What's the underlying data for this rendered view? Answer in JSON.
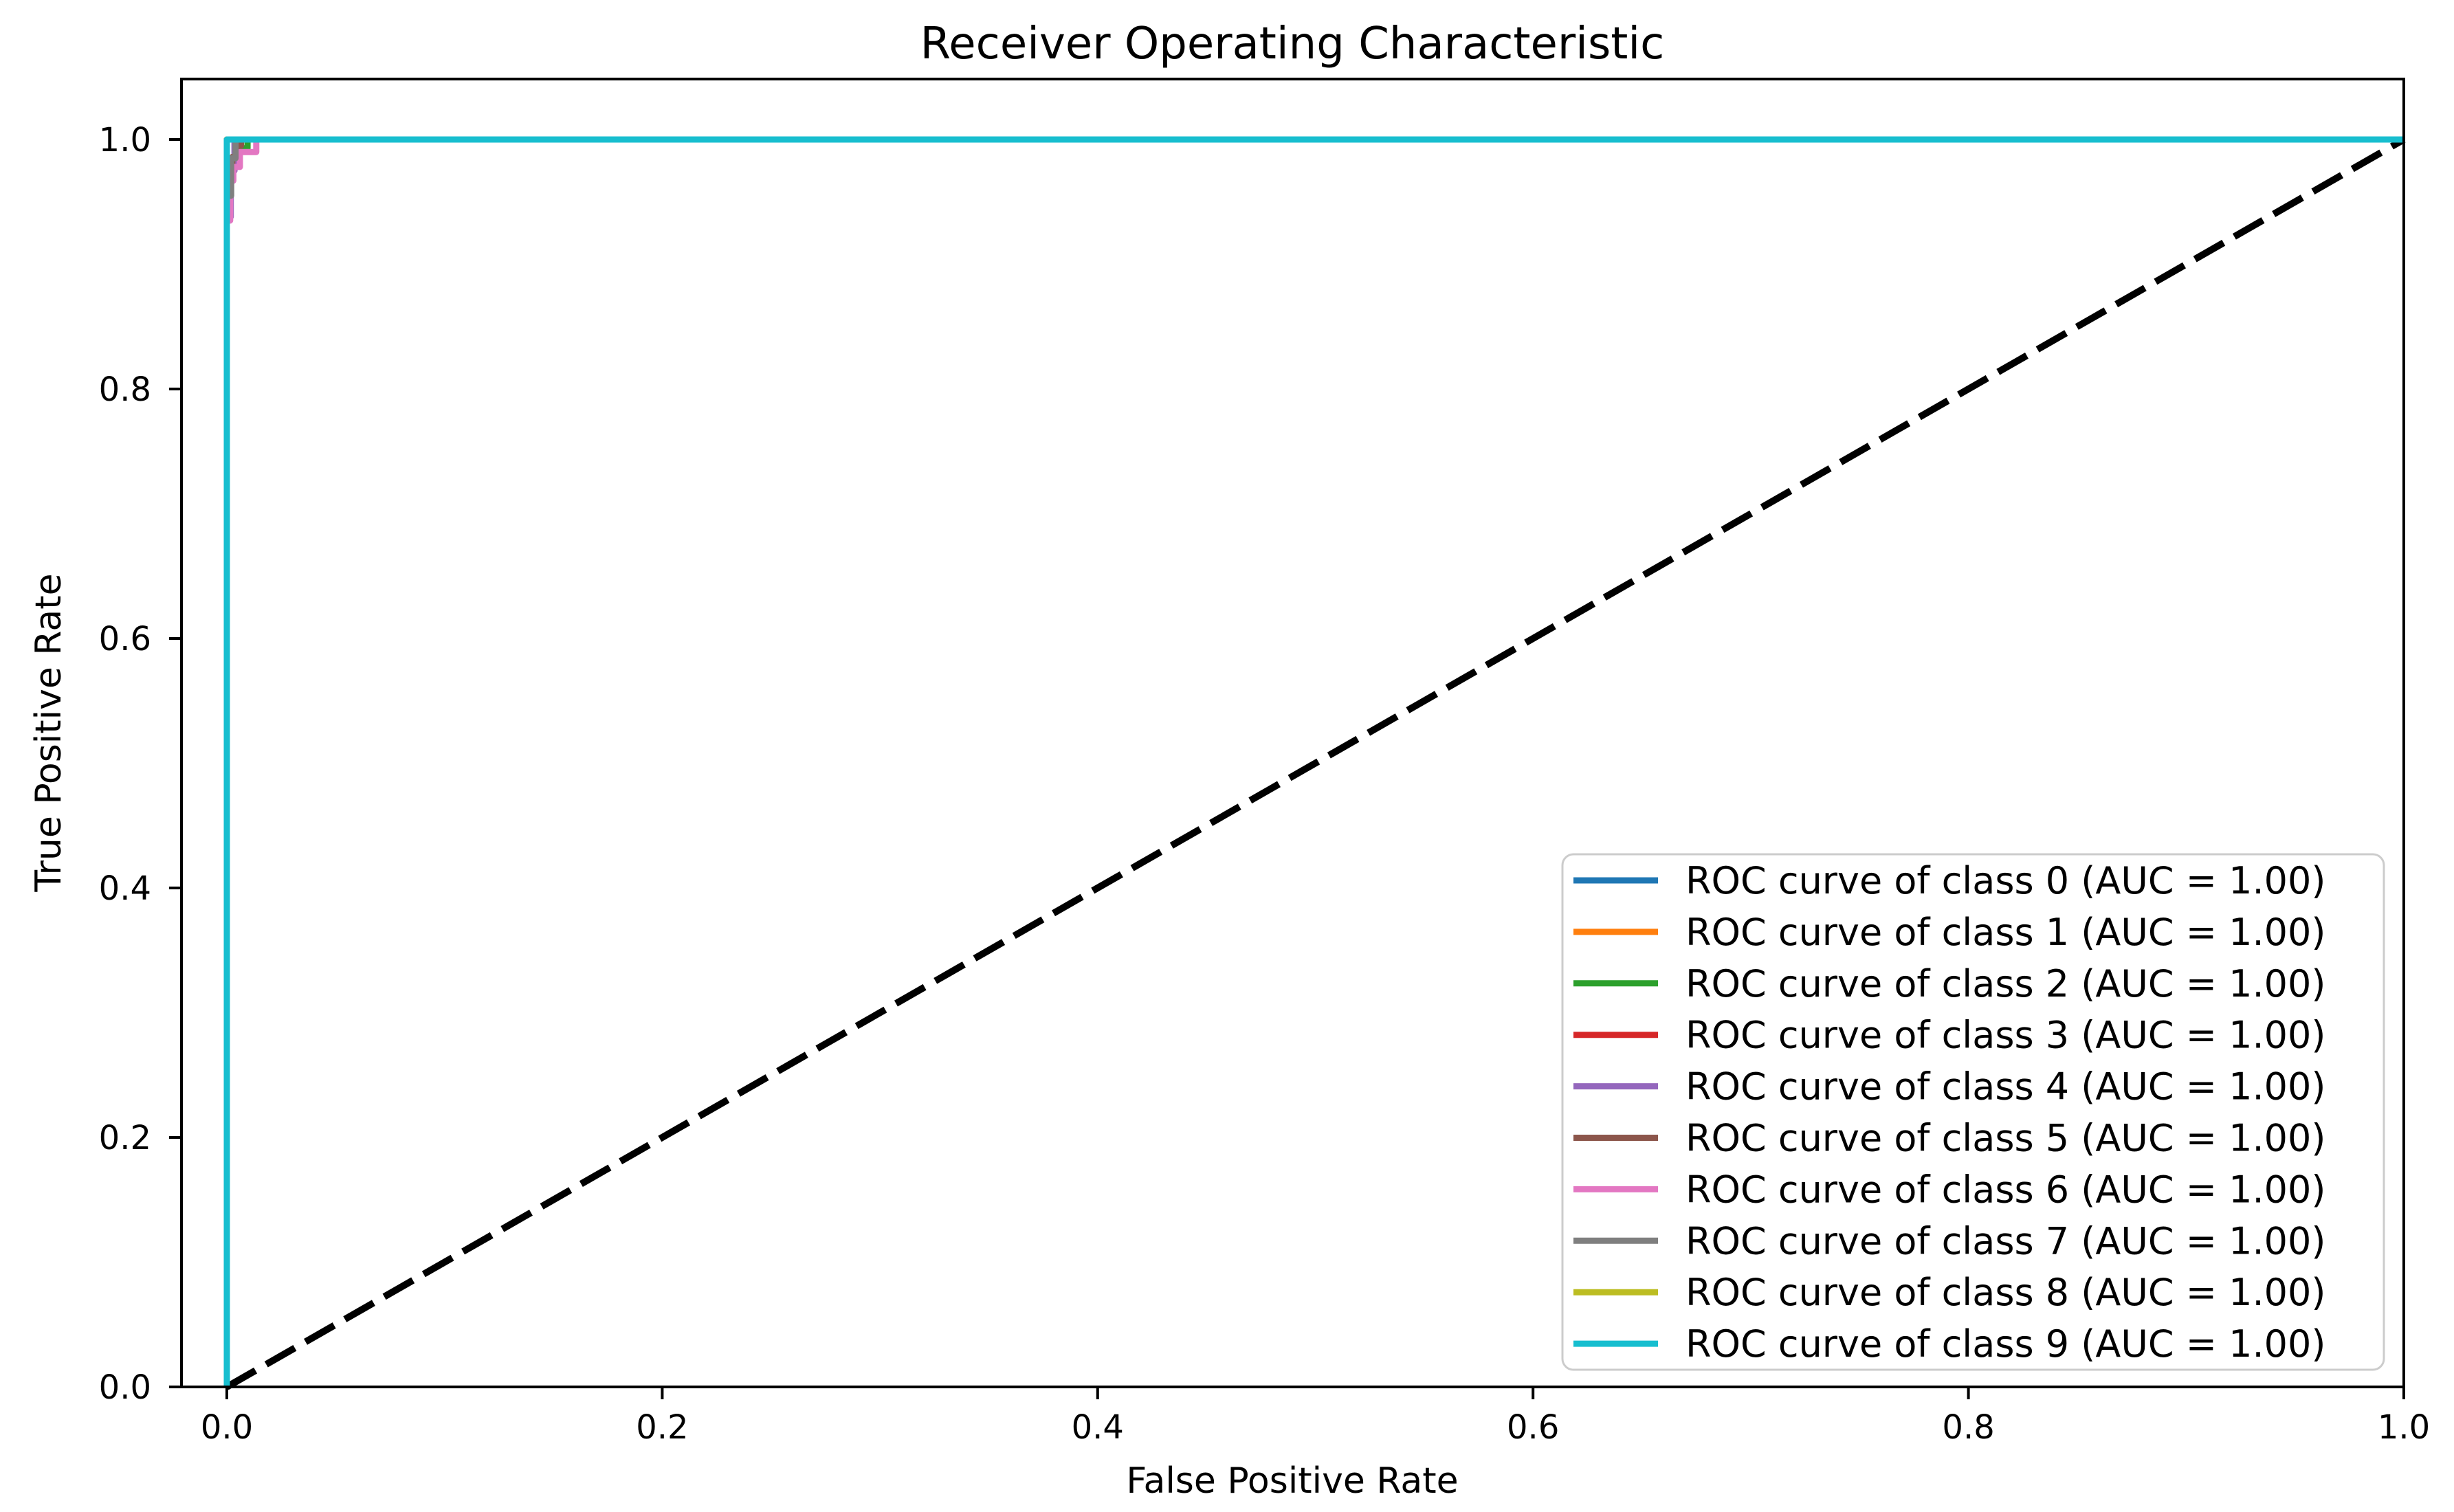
{
  "chart_data": {
    "type": "line",
    "title": "Receiver Operating Characteristic",
    "xlabel": "False Positive Rate",
    "ylabel": "True Positive Rate",
    "xlim": [
      -0.021,
      1.0
    ],
    "ylim": [
      0.0,
      1.05
    ],
    "grid": false,
    "legend_position": "lower right",
    "x_ticks": [
      0.0,
      0.2,
      0.4,
      0.6,
      0.8,
      1.0
    ],
    "x_tick_labels": [
      "0.0",
      "0.2",
      "0.4",
      "0.6",
      "0.8",
      "1.0"
    ],
    "y_ticks": [
      0.0,
      0.2,
      0.4,
      0.6,
      0.8,
      1.0
    ],
    "y_tick_labels": [
      "0.0",
      "0.2",
      "0.4",
      "0.6",
      "0.8",
      "1.0"
    ],
    "reference_line": {
      "name": "chance-diagonal",
      "points": [
        [
          0,
          0
        ],
        [
          1,
          1
        ]
      ],
      "color": "#000000",
      "style": "dashed"
    },
    "series": [
      {
        "class": 0,
        "label": "ROC curve of class 0 (AUC = 1.00)",
        "auc": "1.00",
        "color": "#1f77b4",
        "points": [
          [
            0,
            0
          ],
          [
            0,
            1
          ],
          [
            1,
            1
          ]
        ]
      },
      {
        "class": 1,
        "label": "ROC curve of class 1 (AUC = 1.00)",
        "auc": "1.00",
        "color": "#ff7f0e",
        "points": [
          [
            0,
            0
          ],
          [
            0,
            1
          ],
          [
            1,
            1
          ]
        ]
      },
      {
        "class": 2,
        "label": "ROC curve of class 2 (AUC = 1.00)",
        "auc": "1.00",
        "color": "#2ca02c",
        "points": [
          [
            0,
            0
          ],
          [
            0,
            0.985
          ],
          [
            0.004,
            0.985
          ],
          [
            0.004,
            0.993
          ],
          [
            0.0095,
            0.993
          ],
          [
            0.0095,
            1
          ],
          [
            1,
            1
          ]
        ]
      },
      {
        "class": 3,
        "label": "ROC curve of class 3 (AUC = 1.00)",
        "auc": "1.00",
        "color": "#d62728",
        "points": [
          [
            0,
            0
          ],
          [
            0,
            1
          ],
          [
            1,
            1
          ]
        ]
      },
      {
        "class": 4,
        "label": "ROC curve of class 4 (AUC = 1.00)",
        "auc": "1.00",
        "color": "#9467bd",
        "points": [
          [
            0,
            0
          ],
          [
            0,
            0.938
          ],
          [
            0.0018,
            0.938
          ],
          [
            0.0018,
            0.975
          ],
          [
            0.0035,
            0.975
          ],
          [
            0.0035,
            1
          ],
          [
            1,
            1
          ]
        ]
      },
      {
        "class": 5,
        "label": "ROC curve of class 5 (AUC = 1.00)",
        "auc": "1.00",
        "color": "#8c564b",
        "points": [
          [
            0,
            0
          ],
          [
            0,
            0.975
          ],
          [
            0.0025,
            0.975
          ],
          [
            0.0025,
            0.986
          ],
          [
            0.005,
            0.986
          ],
          [
            0.005,
            0.995
          ],
          [
            0.0065,
            0.995
          ],
          [
            0.0065,
            1
          ],
          [
            1,
            1
          ]
        ]
      },
      {
        "class": 6,
        "label": "ROC curve of class 6 (AUC = 1.00)",
        "auc": "1.00",
        "color": "#e377c2",
        "points": [
          [
            0,
            0
          ],
          [
            0,
            0.935
          ],
          [
            0.0015,
            0.935
          ],
          [
            0.0015,
            0.967
          ],
          [
            0.003,
            0.967
          ],
          [
            0.003,
            0.978
          ],
          [
            0.006,
            0.978
          ],
          [
            0.006,
            0.99
          ],
          [
            0.0135,
            0.99
          ],
          [
            0.0135,
            1
          ],
          [
            1,
            1
          ]
        ]
      },
      {
        "class": 7,
        "label": "ROC curve of class 7 (AUC = 1.00)",
        "auc": "1.00",
        "color": "#7f7f7f",
        "points": [
          [
            0,
            0
          ],
          [
            0,
            0.955
          ],
          [
            0.002,
            0.955
          ],
          [
            0.002,
            0.985
          ],
          [
            0.004,
            0.985
          ],
          [
            0.004,
            1
          ],
          [
            1,
            1
          ]
        ]
      },
      {
        "class": 8,
        "label": "ROC curve of class 8 (AUC = 1.00)",
        "auc": "1.00",
        "color": "#bcbd22",
        "points": [
          [
            0,
            0
          ],
          [
            0,
            1
          ],
          [
            1,
            1
          ]
        ]
      },
      {
        "class": 9,
        "label": "ROC curve of class 9 (AUC = 1.00)",
        "auc": "1.00",
        "color": "#17becf",
        "points": [
          [
            0,
            0
          ],
          [
            0,
            1
          ],
          [
            1,
            1
          ]
        ]
      }
    ]
  },
  "colors": {
    "background": "#ffffff",
    "axis": "#000000",
    "text": "#000000",
    "legend_border": "#cccccc",
    "legend_fill": "#ffffff"
  }
}
